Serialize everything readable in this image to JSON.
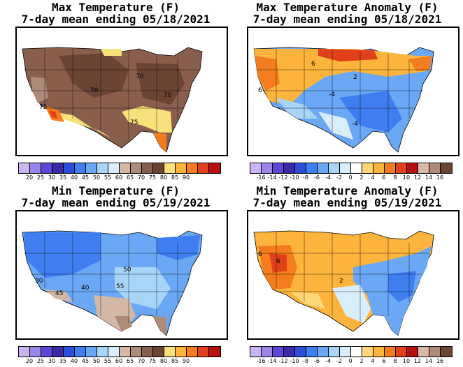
{
  "panels": [
    {
      "id": "max-temp",
      "title1": "Max Temperature (F)",
      "title2": "7-day mean ending 05/18/2021",
      "legend_ticks": [
        "20",
        "25",
        "30",
        "35",
        "40",
        "45",
        "50",
        "55",
        "60",
        "65",
        "70",
        "75",
        "80",
        "85",
        "90"
      ],
      "colors": [
        "#c9b6f0",
        "#9a86e8",
        "#5e46d6",
        "#3a2aa8",
        "#2a4fd8",
        "#3f7ef0",
        "#6aa8f5",
        "#a8d4f8",
        "#d8eefb",
        "#d4b7a6",
        "#b08a78",
        "#8a5e4c",
        "#6a4434",
        "#f8e07a",
        "#fcb43c",
        "#f47c1c",
        "#e0401a",
        "#b8100e"
      ],
      "contour_labels": [
        "70",
        "70",
        "70",
        "75",
        "75"
      ]
    },
    {
      "id": "max-anom",
      "title1": "Max Temperature Anomaly (F)",
      "title2": "7-day mean ending 05/18/2021",
      "legend_ticks": [
        "-16",
        "-14",
        "-12",
        "-10",
        "-8",
        "-6",
        "-4",
        "-2",
        "0",
        "2",
        "4",
        "6",
        "8",
        "10",
        "12",
        "14",
        "16"
      ],
      "colors": [
        "#c9b6f0",
        "#9a86e8",
        "#5e46d6",
        "#3a2aa8",
        "#2a4fd8",
        "#3f7ef0",
        "#6aa8f5",
        "#a8d4f8",
        "#d8eefb",
        "#ffffff",
        "#fcd87a",
        "#fcb43c",
        "#f47c1c",
        "#e0401a",
        "#b8100e",
        "#d8b8a8",
        "#b08a78",
        "#6a4434"
      ],
      "contour_labels": [
        "6",
        "2",
        "-4",
        "-4",
        "6"
      ]
    },
    {
      "id": "min-temp",
      "title1": "Min Temperature (F)",
      "title2": "7-day mean ending 05/19/2021",
      "legend_ticks": [
        "20",
        "25",
        "30",
        "35",
        "40",
        "45",
        "50",
        "55",
        "60",
        "65",
        "70",
        "75",
        "80",
        "85",
        "90"
      ],
      "colors": [
        "#c9b6f0",
        "#9a86e8",
        "#5e46d6",
        "#3a2aa8",
        "#2a4fd8",
        "#3f7ef0",
        "#6aa8f5",
        "#a8d4f8",
        "#d8eefb",
        "#d4b7a6",
        "#b08a78",
        "#8a5e4c",
        "#6a4434",
        "#f8e07a",
        "#fcb43c",
        "#f47c1c",
        "#e0401a",
        "#b8100e"
      ],
      "contour_labels": [
        "50",
        "40",
        "45",
        "55",
        "30"
      ]
    },
    {
      "id": "min-anom",
      "title1": "Min Temperature Anomaly (F)",
      "title2": "7-day mean ending 05/19/2021",
      "legend_ticks": [
        "-16",
        "-14",
        "-12",
        "-10",
        "-8",
        "-6",
        "-4",
        "-2",
        "0",
        "2",
        "4",
        "6",
        "8",
        "10",
        "12",
        "14",
        "16"
      ],
      "colors": [
        "#c9b6f0",
        "#9a86e8",
        "#5e46d6",
        "#3a2aa8",
        "#2a4fd8",
        "#3f7ef0",
        "#6aa8f5",
        "#a8d4f8",
        "#d8eefb",
        "#ffffff",
        "#fcd87a",
        "#fcb43c",
        "#f47c1c",
        "#e0401a",
        "#b8100e",
        "#d8b8a8",
        "#b08a78",
        "#6a4434"
      ],
      "contour_labels": [
        "6",
        "2",
        "6"
      ]
    }
  ]
}
